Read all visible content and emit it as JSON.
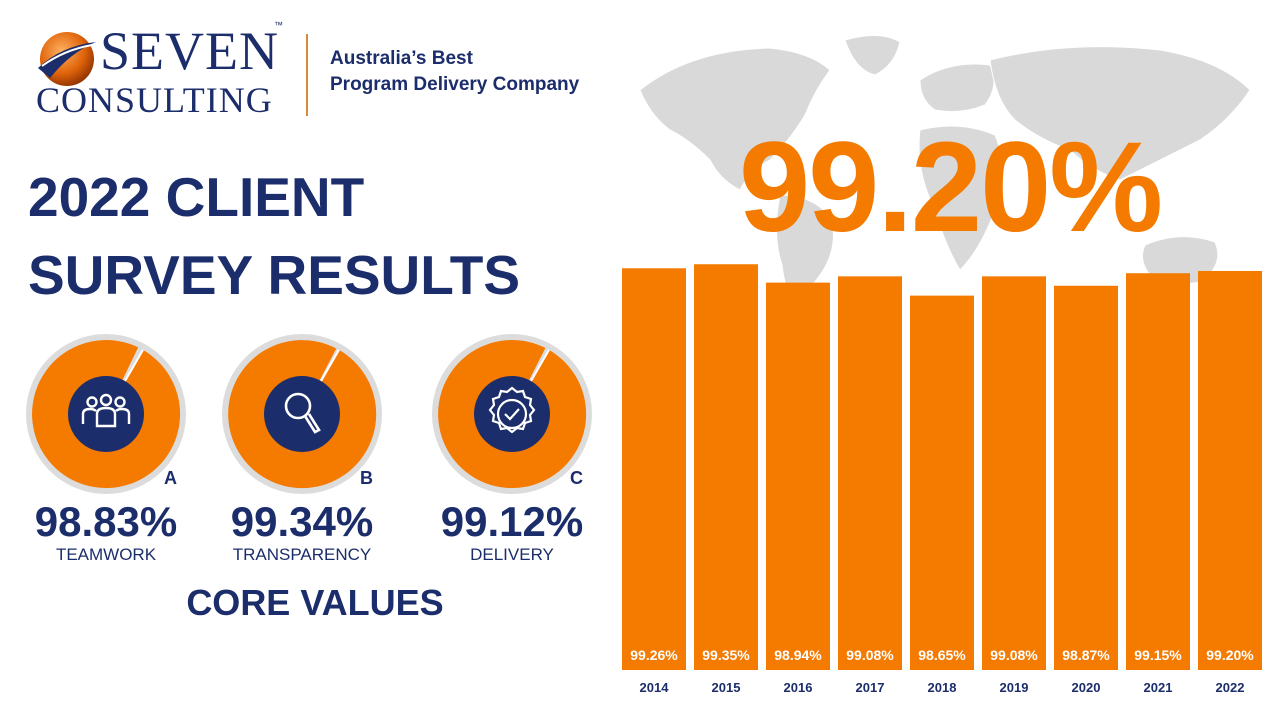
{
  "brand": {
    "name_line1": "SEVEN",
    "name_line2": "CONSULTING",
    "tm": "™",
    "tagline_line1": "Australia’s Best",
    "tagline_line2": "Program Delivery Company"
  },
  "title": {
    "line1": "2022 CLIENT",
    "line2": "SURVEY RESULTS"
  },
  "core_values": {
    "heading": "CORE VALUES",
    "items": [
      {
        "letter": "A",
        "value": "98.83%",
        "fraction": 0.9883,
        "label": "TEAMWORK",
        "icon": "people-group-icon"
      },
      {
        "letter": "B",
        "value": "99.34%",
        "fraction": 0.9934,
        "label": "TRANSPARENCY",
        "icon": "magnifier-icon"
      },
      {
        "letter": "C",
        "value": "99.12%",
        "fraction": 0.9912,
        "label": "DELIVERY",
        "icon": "check-badge-icon"
      }
    ]
  },
  "headline_value": "99.20%",
  "colors": {
    "navy": "#1c2d6b",
    "orange": "#f47a00",
    "track": "#dcdcdc",
    "map": "#d9d9d9"
  },
  "chart_data": {
    "type": "bar",
    "categories": [
      "2014",
      "2015",
      "2016",
      "2017",
      "2018",
      "2019",
      "2020",
      "2021",
      "2022"
    ],
    "values": [
      99.26,
      99.35,
      98.94,
      99.08,
      98.65,
      99.08,
      98.87,
      99.15,
      99.2
    ],
    "value_labels": [
      "99.26%",
      "99.35%",
      "98.94%",
      "99.08%",
      "98.65%",
      "99.08%",
      "98.87%",
      "99.15%",
      "99.20%"
    ],
    "title": "",
    "xlabel": "",
    "ylabel": "",
    "ylim": [
      90.3,
      99.4
    ],
    "grid": false,
    "legend": "none"
  }
}
